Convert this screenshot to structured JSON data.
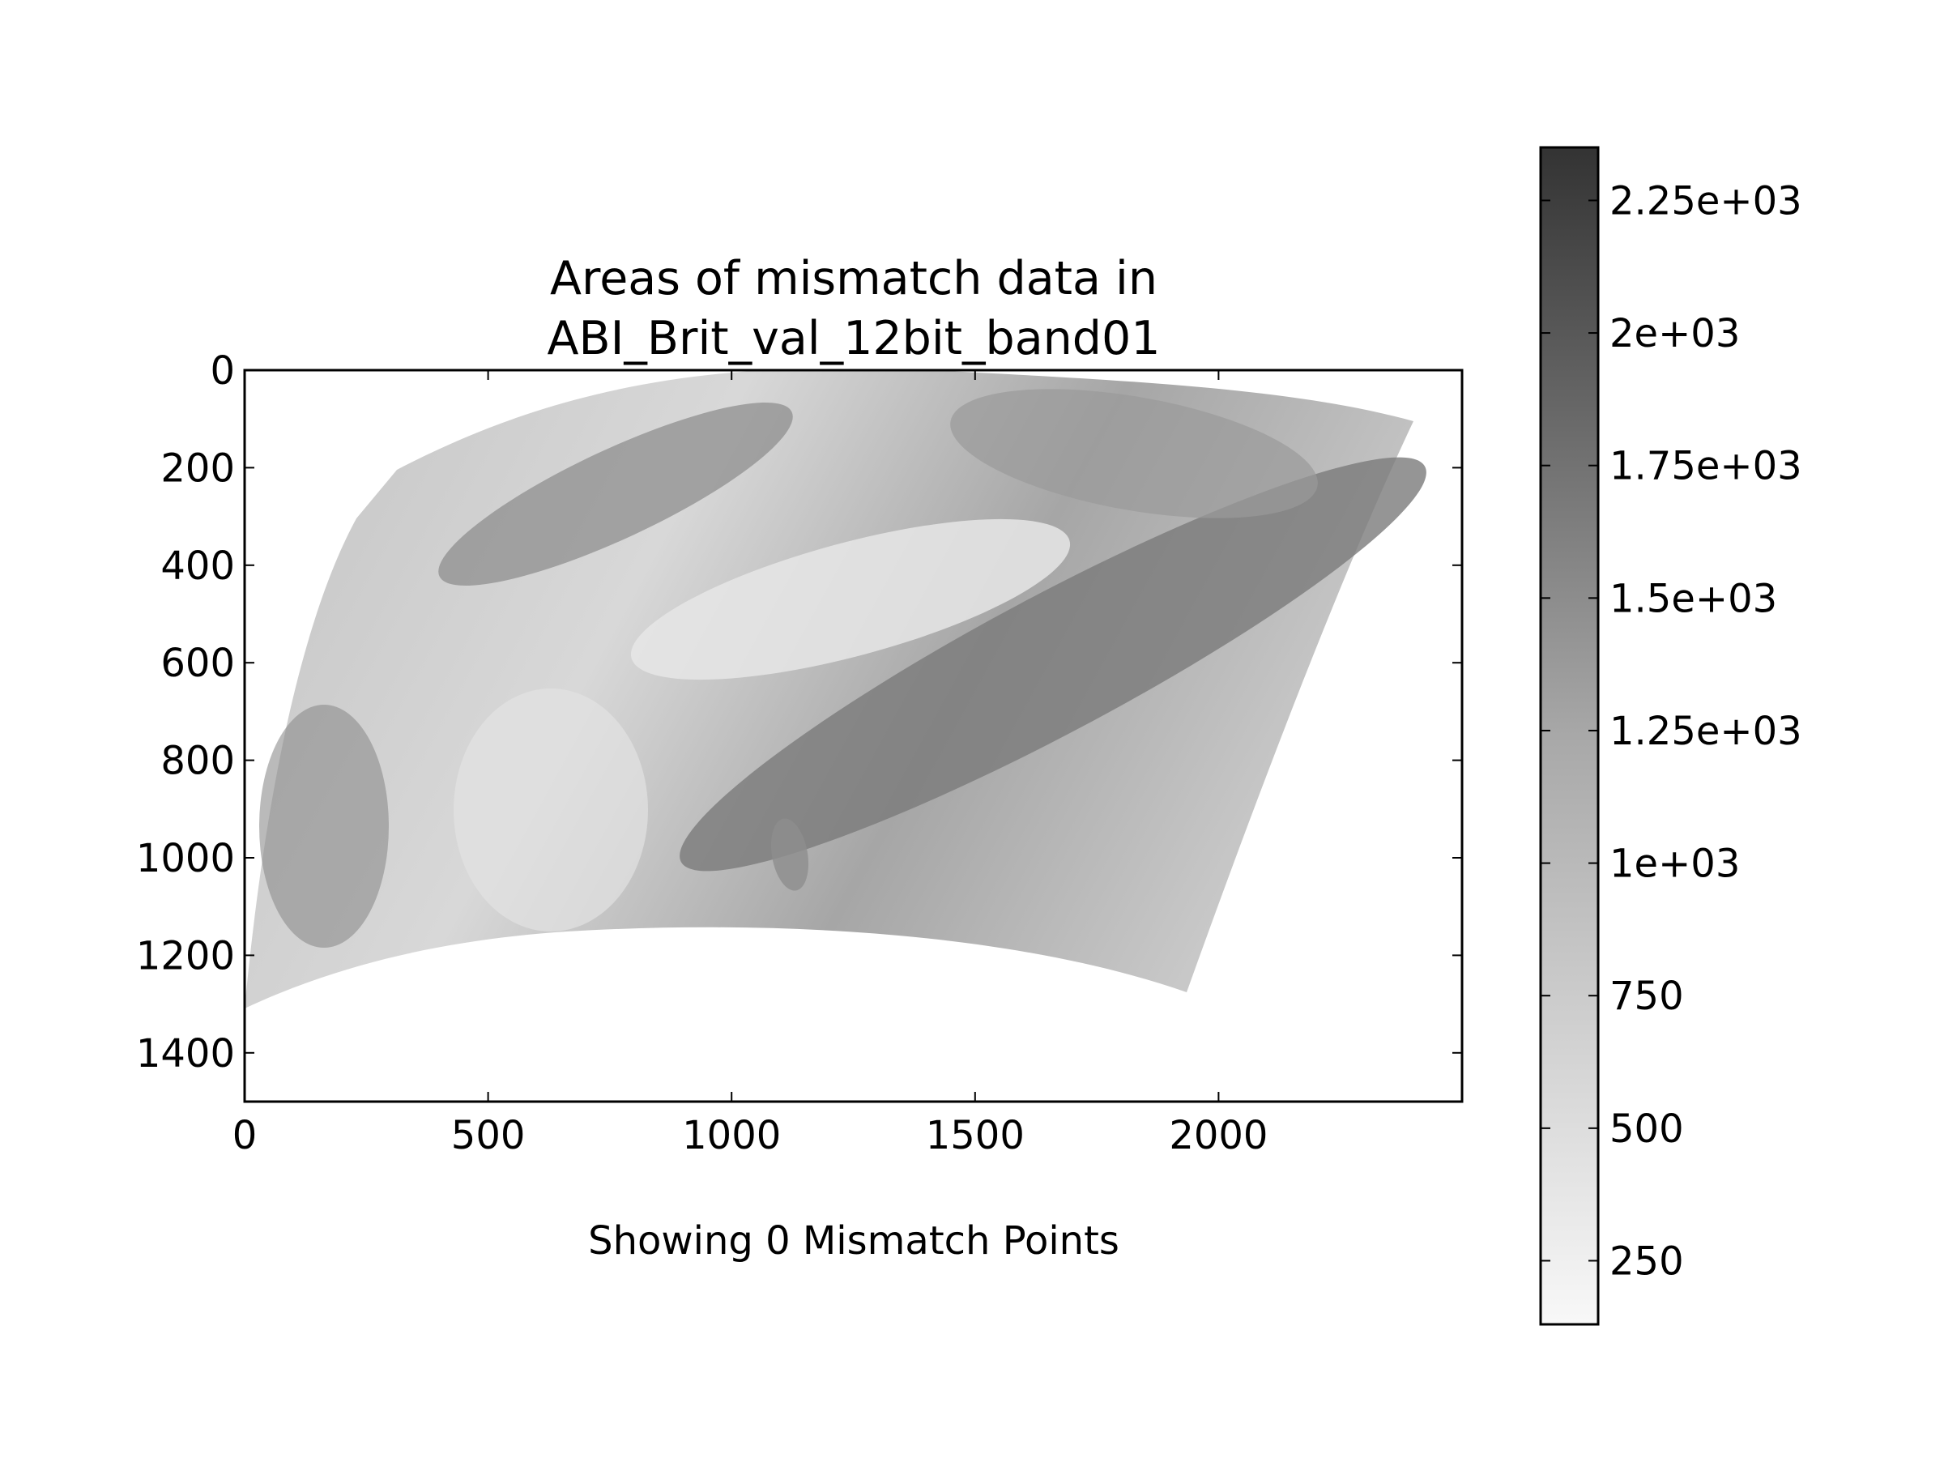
{
  "chart_data": {
    "type": "heatmap",
    "title_lines": [
      "Areas of mismatch data in",
      "ABI_Brit_val_12bit_band01"
    ],
    "caption": "Showing 0 Mismatch Points",
    "xlabel": "",
    "ylabel": "",
    "x_range": [
      0,
      2500
    ],
    "y_range": [
      0,
      1500
    ],
    "y_inverted": true,
    "x_ticks": [
      0,
      500,
      1000,
      1500,
      2000
    ],
    "x_tick_labels": [
      "0",
      "500",
      "1000",
      "1500",
      "2000"
    ],
    "y_ticks": [
      0,
      200,
      400,
      600,
      800,
      1000,
      1200,
      1400
    ],
    "y_tick_labels": [
      "0",
      "200",
      "400",
      "600",
      "800",
      "1000",
      "1200",
      "1400"
    ],
    "colorbar": {
      "range": [
        130,
        2350
      ],
      "ticks": [
        250,
        500,
        750,
        1000,
        1250,
        1500,
        1750,
        2000,
        2250
      ],
      "tick_labels": [
        "250",
        "500",
        "750",
        "1e+03",
        "1.25e+03",
        "1.5e+03",
        "1.75e+03",
        "2e+03",
        "2.25e+03"
      ],
      "colormap": "gray_r",
      "color_low": "#f8f8f8",
      "color_high": "#333333"
    },
    "mismatch_points": 0,
    "grid": false
  }
}
